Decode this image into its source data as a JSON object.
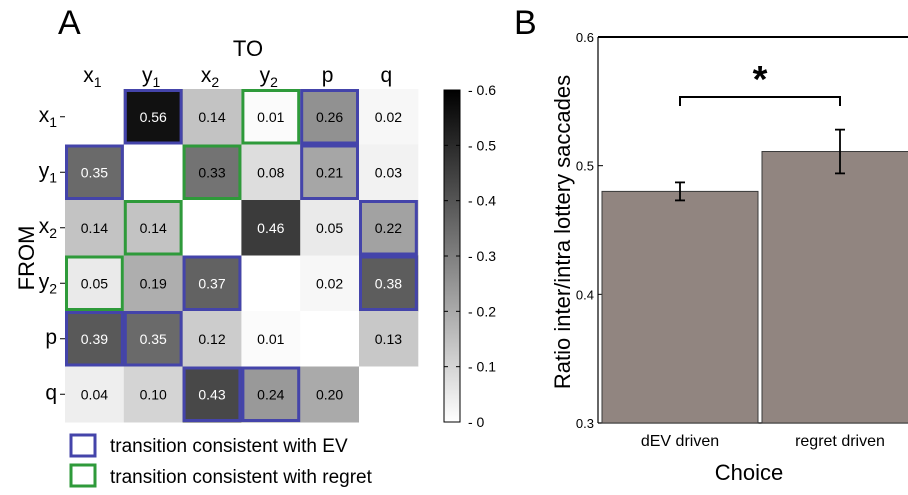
{
  "panel_a_letter": "A",
  "panel_b_letter": "B",
  "legend": {
    "ev_label": "transition consistent with EV",
    "regret_label": "transition consistent with regret",
    "ev_color": "#4444aa",
    "regret_color": "#2e9a3a"
  },
  "chart_data": [
    {
      "type": "heatmap",
      "title": "",
      "xlabel": "TO",
      "ylabel": "FROM",
      "x_categories": [
        {
          "base": "x",
          "sub": "1"
        },
        {
          "base": "y",
          "sub": "1"
        },
        {
          "base": "x",
          "sub": "2"
        },
        {
          "base": "y",
          "sub": "2"
        },
        {
          "base": "p",
          "sub": ""
        },
        {
          "base": "q",
          "sub": ""
        }
      ],
      "y_categories": [
        {
          "base": "x",
          "sub": "1"
        },
        {
          "base": "y",
          "sub": "1"
        },
        {
          "base": "x",
          "sub": "2"
        },
        {
          "base": "y",
          "sub": "2"
        },
        {
          "base": "p",
          "sub": ""
        },
        {
          "base": "q",
          "sub": ""
        }
      ],
      "values": [
        [
          null,
          0.56,
          0.14,
          0.01,
          0.26,
          0.02
        ],
        [
          0.35,
          null,
          0.33,
          0.08,
          0.21,
          0.03
        ],
        [
          0.14,
          0.14,
          null,
          0.46,
          0.05,
          0.22
        ],
        [
          0.05,
          0.19,
          0.37,
          null,
          0.02,
          0.38
        ],
        [
          0.39,
          0.35,
          0.12,
          0.01,
          null,
          0.13
        ],
        [
          0.04,
          0.1,
          0.43,
          0.24,
          0.2,
          null
        ]
      ],
      "labels": [
        [
          "",
          "0.56",
          "0.14",
          "0.01",
          "0.26",
          "0.02"
        ],
        [
          "0.35",
          "",
          "0.33",
          "0.08",
          "0.21",
          "0.03"
        ],
        [
          "0.14",
          "0.14",
          "",
          "0.46",
          "0.05",
          "0.22"
        ],
        [
          "0.05",
          "0.19",
          "0.37",
          "",
          "0.02",
          "0.38"
        ],
        [
          "0.39",
          "0.35",
          "0.12",
          "0.01",
          "",
          "0.13"
        ],
        [
          "0.04",
          "0.10",
          "0.43",
          "0.24",
          "0.20",
          ""
        ]
      ],
      "outline": [
        [
          "",
          "ev",
          "",
          "regret",
          "ev",
          ""
        ],
        [
          "ev",
          "",
          "regret",
          "",
          "ev",
          ""
        ],
        [
          "",
          "regret",
          "",
          "",
          "",
          "ev"
        ],
        [
          "regret",
          "",
          "ev",
          "",
          "",
          "ev"
        ],
        [
          "ev",
          "ev",
          "",
          "",
          "",
          ""
        ],
        [
          "",
          "",
          "ev",
          "ev",
          "",
          ""
        ]
      ],
      "colorbar": {
        "range": [
          0,
          0.6
        ],
        "ticks": [
          0,
          0.1,
          0.2,
          0.3,
          0.4,
          0.5,
          0.6
        ],
        "tick_labels": [
          "0",
          "0.1",
          "0.2",
          "0.3",
          "0.4",
          "0.5",
          "0.6"
        ],
        "colormap": "white-to-black"
      }
    },
    {
      "type": "bar",
      "title": "",
      "xlabel": "Choice",
      "ylabel": "Ratio inter/intra lottery saccades",
      "categories": [
        "dEV driven",
        "regret driven"
      ],
      "values": [
        0.48,
        0.511
      ],
      "errors": [
        0.007,
        0.017
      ],
      "ylim": [
        0.3,
        0.6
      ],
      "yticks": [
        0.3,
        0.4,
        0.5,
        0.6
      ],
      "ytick_labels": [
        "0.3",
        "0.4",
        "0.5",
        "0.6"
      ],
      "bar_color": "#918580",
      "significance": {
        "between": [
          0,
          1
        ],
        "label": "*"
      }
    }
  ]
}
